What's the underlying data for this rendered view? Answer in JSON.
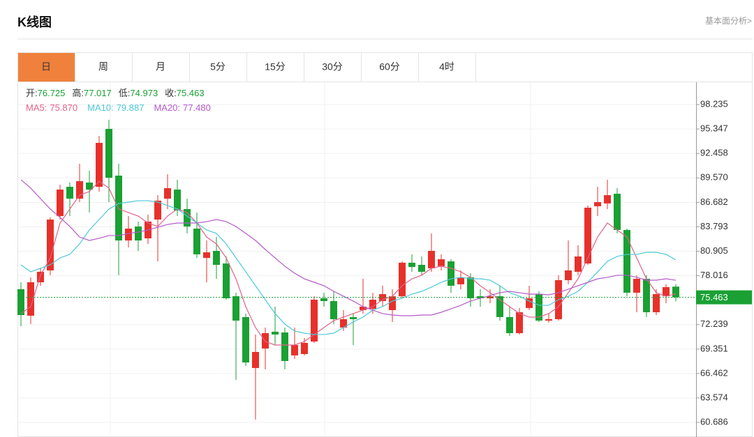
{
  "header": {
    "title": "K线图",
    "link": "基本面分析>"
  },
  "tabs": [
    "日",
    "周",
    "月",
    "5分",
    "15分",
    "30分",
    "60分",
    "4时"
  ],
  "active_tab": 0,
  "chart_data": {
    "type": "candlestick",
    "ohlc_labels": [
      "开:",
      "高:",
      "低:",
      "收:"
    ],
    "open": [
      76.42,
      73.29,
      77.24,
      78.64,
      85.06,
      88.52,
      87.12,
      89.02,
      88.52,
      95.36,
      89.84,
      82.18,
      83.83,
      82.43,
      84.65,
      87.12,
      88.19,
      85.89,
      83.58,
      80.12,
      80.95,
      79.46,
      75.59,
      73.13,
      67.11,
      69.42,
      71.4,
      71.31,
      68.6,
      68.76,
      70.24,
      75.35,
      75.02,
      71.89,
      73.13,
      73.95,
      74.11,
      75.02,
      73.95,
      75.59,
      79.55,
      79.3,
      78.89,
      79.14,
      79.71,
      77.0,
      77.82,
      75.59,
      75.35,
      75.59,
      73.13,
      71.23,
      74.2,
      75.84,
      72.71,
      72.88,
      77.49,
      78.48,
      79.46,
      86.22,
      86.55,
      87.7,
      83.42,
      76.01,
      77.65,
      73.7,
      75.59,
      76.725
    ],
    "high": [
      77.24,
      77.82,
      78.89,
      84.9,
      88.77,
      89.02,
      91.24,
      90.42,
      94.53,
      96.43,
      91.24,
      85.06,
      84.41,
      85.23,
      87.53,
      90.0,
      89.35,
      87.12,
      85.48,
      82.18,
      82.59,
      80.29,
      76.01,
      73.54,
      71.07,
      71.89,
      74.36,
      71.89,
      71.89,
      70.66,
      75.59,
      76.01,
      76.17,
      73.95,
      73.54,
      77.65,
      76.01,
      76.83,
      76.42,
      79.71,
      80.54,
      80.29,
      83.01,
      80.54,
      79.96,
      78.64,
      78.31,
      76.42,
      76.42,
      76.83,
      74.36,
      74.2,
      76.83,
      76.17,
      73.54,
      78.07,
      82.18,
      81.61,
      86.3,
      88.52,
      89.35,
      88.36,
      83.58,
      78.07,
      78.07,
      76.42,
      77.0,
      77.017
    ],
    "low": [
      72.05,
      72.3,
      76.83,
      78.07,
      84.65,
      85.06,
      86.71,
      85.48,
      87.95,
      86.71,
      78.07,
      81.36,
      80.95,
      81.77,
      79.71,
      85.89,
      85.06,
      83.01,
      80.12,
      77.24,
      77.65,
      75.18,
      65.71,
      67.36,
      61.02,
      66.95,
      69.83,
      66.95,
      68.18,
      68.6,
      70.08,
      74.36,
      72.3,
      71.48,
      69.83,
      73.54,
      73.54,
      74.36,
      72.55,
      75.35,
      78.48,
      78.07,
      78.48,
      78.64,
      76.01,
      76.42,
      74.36,
      74.36,
      74.77,
      72.71,
      70.9,
      71.07,
      73.95,
      72.55,
      72.47,
      72.71,
      77.0,
      78.07,
      79.3,
      85.06,
      85.89,
      83.01,
      75.59,
      73.7,
      73.13,
      73.37,
      74.77,
      74.973
    ],
    "close": [
      73.37,
      77.24,
      78.48,
      84.65,
      88.19,
      87.12,
      89.18,
      88.19,
      93.71,
      89.59,
      82.18,
      83.58,
      82.18,
      84.41,
      86.88,
      88.36,
      85.72,
      83.83,
      80.54,
      80.78,
      79.3,
      75.35,
      72.71,
      67.77,
      69.01,
      71.23,
      71.07,
      67.94,
      69.83,
      70.08,
      75.18,
      75.02,
      72.88,
      72.88,
      72.88,
      74.36,
      75.18,
      75.84,
      75.59,
      79.55,
      79.05,
      78.48,
      80.95,
      79.96,
      76.83,
      77.82,
      75.35,
      75.35,
      75.59,
      73.13,
      71.23,
      73.7,
      75.35,
      72.71,
      72.88,
      77.49,
      78.64,
      80.29,
      86.05,
      86.71,
      87.53,
      83.42,
      76.01,
      77.65,
      73.7,
      75.84,
      76.67,
      75.463
    ],
    "up_color": "#e8302b",
    "down_color": "#1aa033",
    "series": [
      {
        "name": "MA5:",
        "color": "#e0628a",
        "current": {
          "value": 75.87,
          "label": "75.870"
        },
        "values": [
          73.54,
          74.36,
          78.07,
          80.12,
          84.24,
          85.89,
          87.53,
          87.95,
          89.18,
          88.36,
          85.89,
          85.48,
          85.06,
          84.24,
          83.83,
          85.06,
          85.89,
          85.48,
          84.24,
          82.59,
          81.77,
          80.12,
          77.65,
          74.36,
          71.89,
          70.24,
          69.83,
          69.83,
          69.83,
          70.24,
          71.07,
          71.89,
          72.71,
          73.13,
          73.54,
          73.95,
          74.36,
          75.18,
          75.59,
          76.83,
          77.65,
          78.07,
          78.89,
          79.14,
          78.89,
          78.48,
          77.82,
          76.83,
          76.01,
          75.18,
          74.36,
          73.54,
          73.13,
          73.13,
          73.54,
          74.36,
          76.01,
          77.65,
          80.12,
          82.59,
          84.24,
          83.42,
          82.59,
          80.12,
          77.65,
          76.01,
          75.59,
          75.87
        ]
      },
      {
        "name": "MA10:",
        "color": "#4cc8d8",
        "current": {
          "value": 79.887,
          "label": "79.887"
        },
        "values": [
          79.3,
          78.48,
          78.89,
          79.3,
          80.12,
          80.54,
          81.77,
          83.42,
          84.65,
          85.89,
          86.55,
          86.71,
          86.88,
          86.88,
          86.71,
          86.3,
          85.89,
          85.06,
          84.24,
          83.42,
          83.01,
          81.77,
          80.12,
          78.48,
          76.83,
          75.18,
          73.54,
          72.3,
          71.48,
          71.23,
          71.07,
          71.07,
          71.23,
          71.89,
          72.55,
          73.13,
          73.95,
          74.36,
          75.02,
          75.35,
          75.84,
          76.17,
          76.67,
          77.24,
          77.65,
          77.82,
          77.65,
          77.65,
          77.49,
          76.83,
          76.01,
          75.59,
          75.02,
          74.52,
          74.52,
          75.18,
          75.59,
          76.17,
          77.24,
          78.48,
          79.71,
          80.29,
          80.54,
          80.54,
          80.78,
          80.78,
          80.54,
          79.887
        ]
      },
      {
        "name": "MA20:",
        "color": "#b45ac8",
        "current": {
          "value": 77.48,
          "label": "77.480"
        },
        "values": [
          89.35,
          88.36,
          87.12,
          85.89,
          84.9,
          83.83,
          82.59,
          82.18,
          82.43,
          82.76,
          82.76,
          83.01,
          83.17,
          83.42,
          83.74,
          84.07,
          84.24,
          84.24,
          84.24,
          84.41,
          84.65,
          84.41,
          83.83,
          83.01,
          82.18,
          81.11,
          80.12,
          79.14,
          78.31,
          77.65,
          77.24,
          76.83,
          76.17,
          75.59,
          75.02,
          74.36,
          73.95,
          73.54,
          73.37,
          73.29,
          73.29,
          73.37,
          73.37,
          73.7,
          74.11,
          74.52,
          75.02,
          75.35,
          75.67,
          76.01,
          76.17,
          76.01,
          75.84,
          75.84,
          75.76,
          76.01,
          76.42,
          76.83,
          77.24,
          77.65,
          77.82,
          78.07,
          78.07,
          77.82,
          77.49,
          77.49,
          77.65,
          77.48
        ]
      }
    ],
    "ylim": [
      59.95,
      100.87
    ],
    "yticks": [
      60.686,
      63.574,
      66.462,
      69.351,
      72.239,
      78.016,
      80.905,
      83.793,
      86.682,
      {
        "value": 89.57,
        "label": "89.570"
      },
      92.458,
      95.347,
      98.235
    ],
    "grid": true,
    "last_price_color": "#1aa033"
  }
}
